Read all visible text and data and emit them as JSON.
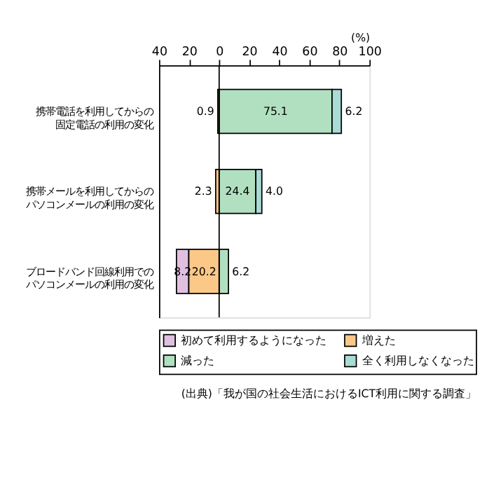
{
  "chart_data": {
    "type": "bar",
    "orientation": "horizontal",
    "categories": [
      "携帯電話を利用してからの固定電話の利用の変化",
      "携帯メールを利用してからのパソコンメールの利用の変化",
      "ブロードバンド回線利用でのパソコンメールの利用の変化"
    ],
    "series": [
      {
        "name": "初めて利用するようになった",
        "color": "#e0c0e0",
        "values": [
          null,
          null,
          8.2
        ],
        "base": [
          null,
          null,
          -28.4
        ],
        "value_labels": [
          null,
          null,
          "8.2"
        ]
      },
      {
        "name": "増えた",
        "color": "#fcc888",
        "values": [
          0.9,
          2.3,
          20.2
        ],
        "base": [
          -0.9,
          -2.3,
          -20.2
        ],
        "value_labels": [
          "0.9",
          "2.3",
          "20.2"
        ]
      },
      {
        "name": "減った",
        "color": "#b0e0c0",
        "values": [
          75.1,
          24.4,
          6.2
        ],
        "base": [
          0,
          0,
          0
        ],
        "value_labels": [
          "75.1",
          "24.4",
          "6.2"
        ]
      },
      {
        "name": "全く利用しなくなった",
        "color": "#a8dcd4",
        "values": [
          6.2,
          4.0,
          null
        ],
        "base": [
          75.1,
          24.4,
          null
        ],
        "value_labels": [
          "6.2",
          "4.0",
          null
        ]
      }
    ],
    "xlim": [
      -40,
      100
    ],
    "xticks": [
      {
        "value": -40,
        "label": "40"
      },
      {
        "value": -20,
        "label": "20"
      },
      0,
      20,
      40,
      60,
      80,
      100
    ],
    "xlabel": "(%)",
    "ref_lines": [
      {
        "axis": "x",
        "value": 0,
        "color": "#000000"
      }
    ],
    "grid": false,
    "legend": "bottom",
    "annotations": [
      "(出典)「我が国の社会生活におけるICT利用に関する調査」"
    ]
  }
}
